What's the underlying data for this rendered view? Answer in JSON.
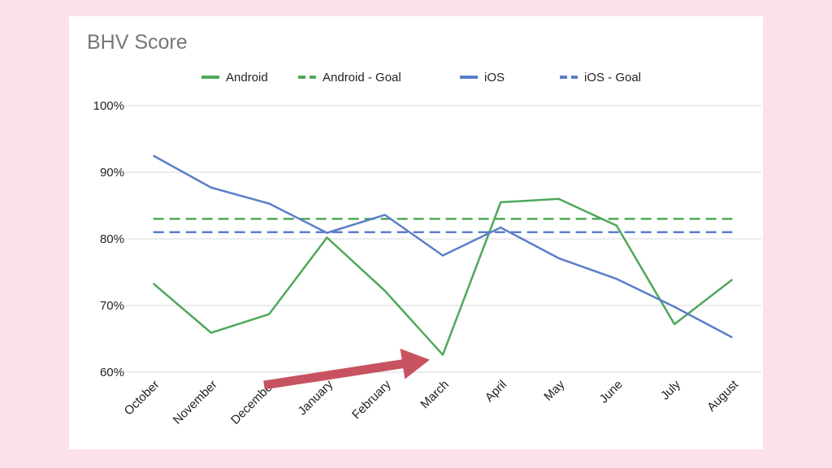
{
  "chart_data": {
    "type": "line",
    "title": "BHV Score",
    "xlabel": "",
    "ylabel": "",
    "categories": [
      "October",
      "November",
      "December",
      "January",
      "February",
      "March",
      "April",
      "May",
      "June",
      "July",
      "August"
    ],
    "yticks": [
      "60%",
      "70%",
      "80%",
      "90%",
      "100%"
    ],
    "ylim": [
      60,
      100
    ],
    "grid": true,
    "legend": "top",
    "series": [
      {
        "name": "Android",
        "style": "solid",
        "color": "#4ea85a",
        "values": [
          73.3,
          65.9,
          68.7,
          80.2,
          72.2,
          62.6,
          85.5,
          86.0,
          82.0,
          67.2,
          73.9
        ]
      },
      {
        "name": "Android - Goal",
        "style": "dashed",
        "color": "#4ea85a",
        "values": [
          83,
          83,
          83,
          83,
          83,
          83,
          83,
          83,
          83,
          83,
          83
        ]
      },
      {
        "name": "iOS",
        "style": "solid",
        "color": "#5b7ec8",
        "values": [
          92.5,
          87.7,
          85.3,
          80.9,
          83.6,
          77.5,
          81.7,
          77.1,
          74.0,
          69.8,
          65.2
        ]
      },
      {
        "name": "iOS - Goal",
        "style": "dashed",
        "color": "#5b7ec8",
        "values": [
          81,
          81,
          81,
          81,
          81,
          81,
          81,
          81,
          81,
          81,
          81
        ]
      }
    ],
    "annotations": [
      {
        "type": "arrow",
        "target_category": "March",
        "color": "#c85360"
      }
    ]
  }
}
